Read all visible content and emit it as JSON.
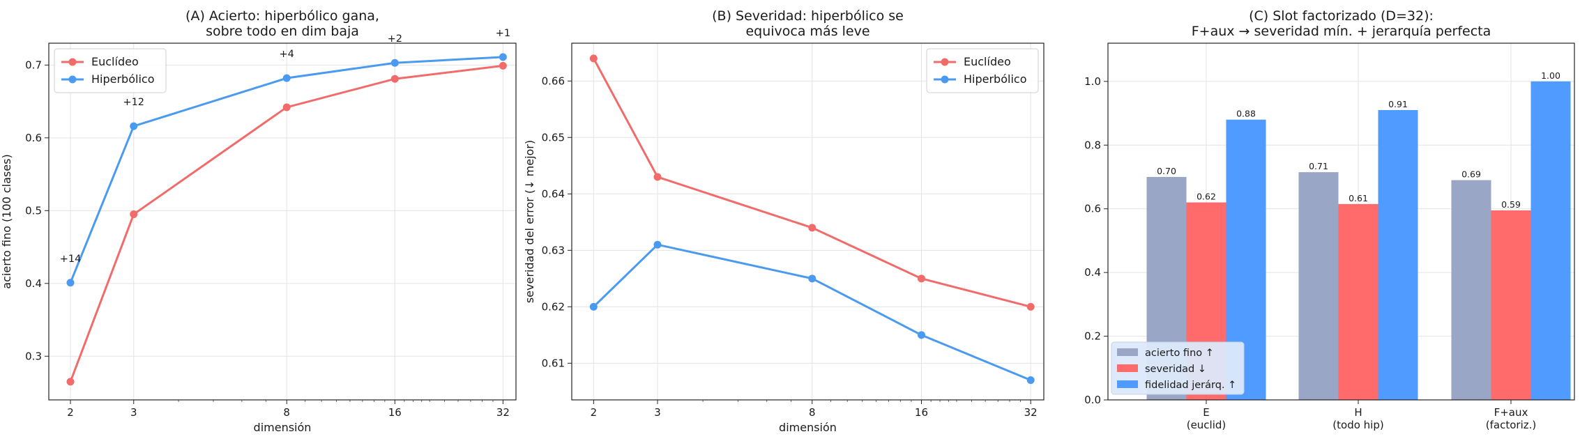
{
  "colors": {
    "euclid": "#f26b6b",
    "hyper": "#4a9af0",
    "fine": "#9aa6c6",
    "severity": "#ff6b6b",
    "fidelity": "#4f9bff",
    "grid": "#e3e3e3",
    "legend_bg_c": "#dce9fb"
  },
  "chart_data": [
    {
      "type": "line",
      "title_lines": [
        "(A) Acierto: hiperbólico gana,",
        "sobre todo en dim baja"
      ],
      "xlabel": "dimensión",
      "ylabel": "acierto fino (100 clases)",
      "x_scale": "log2",
      "x": [
        2,
        3,
        8,
        16,
        32
      ],
      "x_tick_labels": [
        "2",
        "3",
        "8",
        "16",
        "32"
      ],
      "ylim": [
        0.24,
        0.73
      ],
      "y_ticks": [
        0.3,
        0.4,
        0.5,
        0.6,
        0.7
      ],
      "y_tick_labels": [
        "0.3",
        "0.4",
        "0.5",
        "0.6",
        "0.7"
      ],
      "series": [
        {
          "name": "Euclídeo",
          "color": "euclid",
          "values": [
            0.265,
            0.495,
            0.642,
            0.681,
            0.699
          ]
        },
        {
          "name": "Hiperbólico",
          "color": "hyper",
          "values": [
            0.401,
            0.616,
            0.682,
            0.703,
            0.711
          ]
        }
      ],
      "annotations": [
        "+14",
        "+12",
        "+4",
        "+2",
        "+1"
      ],
      "legend": "upper-left",
      "grid": true
    },
    {
      "type": "line",
      "title_lines": [
        "(B) Severidad: hiperbólico se",
        "equivoca más leve"
      ],
      "xlabel": "dimensión",
      "ylabel": "severidad del error (↓ mejor)",
      "x_scale": "log2",
      "x": [
        2,
        3,
        8,
        16,
        32
      ],
      "x_tick_labels": [
        "2",
        "3",
        "8",
        "16",
        "32"
      ],
      "ylim": [
        0.6035,
        0.6667
      ],
      "y_ticks": [
        0.61,
        0.62,
        0.63,
        0.64,
        0.65,
        0.66
      ],
      "y_tick_labels": [
        "0.61",
        "0.62",
        "0.63",
        "0.64",
        "0.65",
        "0.66"
      ],
      "series": [
        {
          "name": "Euclídeo",
          "color": "euclid",
          "values": [
            0.664,
            0.643,
            0.634,
            0.625,
            0.62
          ]
        },
        {
          "name": "Hiperbólico",
          "color": "hyper",
          "values": [
            0.62,
            0.631,
            0.625,
            0.615,
            0.607
          ]
        }
      ],
      "legend": "upper-right",
      "grid": true
    },
    {
      "type": "bar",
      "title_lines": [
        "(C) Slot factorizado (D=32):",
        "F+aux → severidad mín. + jerarquía perfecta"
      ],
      "categories": [
        [
          "E",
          "(euclid)"
        ],
        [
          "H",
          "(todo hip)"
        ],
        [
          "F+aux",
          "(factoriz.)"
        ]
      ],
      "ylim": [
        0,
        1.12
      ],
      "y_ticks": [
        0.0,
        0.2,
        0.4,
        0.6,
        0.8,
        1.0
      ],
      "y_tick_labels": [
        "0.0",
        "0.2",
        "0.4",
        "0.6",
        "0.8",
        "1.0"
      ],
      "series": [
        {
          "name": "acierto fino ↑",
          "color": "fine",
          "values": [
            0.7,
            0.715,
            0.69
          ],
          "labels": [
            "0.70",
            "0.71",
            "0.69"
          ]
        },
        {
          "name": "severidad ↓",
          "color": "severity",
          "values": [
            0.62,
            0.615,
            0.595
          ],
          "labels": [
            "0.62",
            "0.61",
            "0.59"
          ]
        },
        {
          "name": "fidelidad jerárq. ↑",
          "color": "fidelity",
          "values": [
            0.88,
            0.91,
            1.0
          ],
          "labels": [
            "0.88",
            "0.91",
            "1.00"
          ]
        }
      ],
      "legend": "lower-left",
      "grid": true
    }
  ]
}
